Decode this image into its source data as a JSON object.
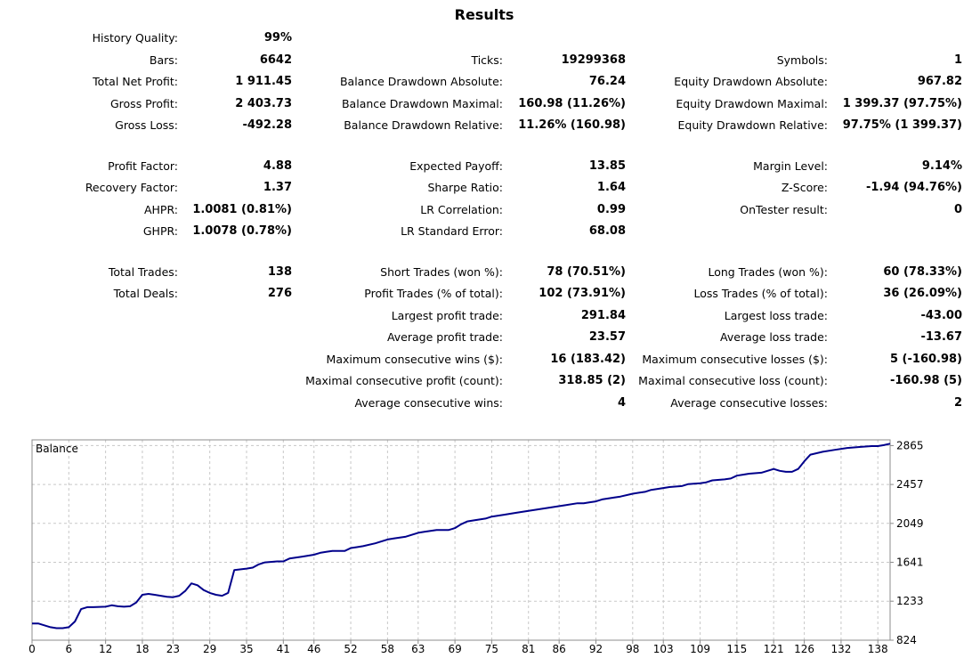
{
  "report": {
    "title": "Results",
    "columns": [
      [
        {
          "key": "history-quality",
          "label": "History Quality:",
          "value": "99%",
          "row": 0
        },
        {
          "key": "bars",
          "label": "Bars:",
          "value": "6642",
          "row": 1
        },
        {
          "key": "total-net-profit",
          "label": "Total Net Profit:",
          "value": "1 911.45",
          "row": 2
        },
        {
          "key": "gross-profit",
          "label": "Gross Profit:",
          "value": "2 403.73",
          "row": 3
        },
        {
          "key": "gross-loss",
          "label": "Gross Loss:",
          "value": "-492.28",
          "row": 4
        },
        {
          "key": "profit-factor",
          "label": "Profit Factor:",
          "value": "4.88",
          "row": 6
        },
        {
          "key": "recovery-factor",
          "label": "Recovery Factor:",
          "value": "1.37",
          "row": 7
        },
        {
          "key": "ahpr",
          "label": "AHPR:",
          "value": "1.0081 (0.81%)",
          "row": 8
        },
        {
          "key": "ghpr",
          "label": "GHPR:",
          "value": "1.0078 (0.78%)",
          "row": 9
        },
        {
          "key": "total-trades",
          "label": "Total Trades:",
          "value": "138",
          "row": 11
        },
        {
          "key": "total-deals",
          "label": "Total Deals:",
          "value": "276",
          "row": 12
        }
      ],
      [
        {
          "key": "ticks",
          "label": "Ticks:",
          "value": "19299368",
          "row": 1
        },
        {
          "key": "balance-drawdown-absolute",
          "label": "Balance Drawdown Absolute:",
          "value": "76.24",
          "row": 2
        },
        {
          "key": "balance-drawdown-maximal",
          "label": "Balance Drawdown Maximal:",
          "value": "160.98 (11.26%)",
          "row": 3
        },
        {
          "key": "balance-drawdown-relative",
          "label": "Balance Drawdown Relative:",
          "value": "11.26% (160.98)",
          "row": 4
        },
        {
          "key": "expected-payoff",
          "label": "Expected Payoff:",
          "value": "13.85",
          "row": 6
        },
        {
          "key": "sharpe-ratio",
          "label": "Sharpe Ratio:",
          "value": "1.64",
          "row": 7
        },
        {
          "key": "lr-correlation",
          "label": "LR Correlation:",
          "value": "0.99",
          "row": 8
        },
        {
          "key": "lr-standard-error",
          "label": "LR Standard Error:",
          "value": "68.08",
          "row": 9
        },
        {
          "key": "short-trades",
          "label": "Short Trades (won %):",
          "value": "78 (70.51%)",
          "row": 11
        },
        {
          "key": "profit-trades",
          "label": "Profit Trades (% of total):",
          "value": "102 (73.91%)",
          "row": 12
        },
        {
          "key": "largest-profit-trade",
          "label": "Largest profit trade:",
          "value": "291.84",
          "row": 13
        },
        {
          "key": "average-profit-trade",
          "label": "Average profit trade:",
          "value": "23.57",
          "row": 14
        },
        {
          "key": "max-consecutive-wins",
          "label": "Maximum consecutive wins ($):",
          "value": "16 (183.42)",
          "row": 15
        },
        {
          "key": "maximal-consecutive-profit",
          "label": "Maximal consecutive profit (count):",
          "value": "318.85 (2)",
          "row": 16
        },
        {
          "key": "average-consecutive-wins",
          "label": "Average consecutive wins:",
          "value": "4",
          "row": 17
        }
      ],
      [
        {
          "key": "symbols",
          "label": "Symbols:",
          "value": "1",
          "row": 1
        },
        {
          "key": "equity-drawdown-absolute",
          "label": "Equity Drawdown Absolute:",
          "value": "967.82",
          "row": 2
        },
        {
          "key": "equity-drawdown-maximal",
          "label": "Equity Drawdown Maximal:",
          "value": "1 399.37 (97.75%)",
          "row": 3
        },
        {
          "key": "equity-drawdown-relative",
          "label": "Equity Drawdown Relative:",
          "value": "97.75% (1 399.37)",
          "row": 4
        },
        {
          "key": "margin-level",
          "label": "Margin Level:",
          "value": "9.14%",
          "row": 6
        },
        {
          "key": "z-score",
          "label": "Z-Score:",
          "value": "-1.94 (94.76%)",
          "row": 7
        },
        {
          "key": "ontester-result",
          "label": "OnTester result:",
          "value": "0",
          "row": 8
        },
        {
          "key": "long-trades",
          "label": "Long Trades (won %):",
          "value": "60 (78.33%)",
          "row": 11
        },
        {
          "key": "loss-trades",
          "label": "Loss Trades (% of total):",
          "value": "36 (26.09%)",
          "row": 12
        },
        {
          "key": "largest-loss-trade",
          "label": "Largest loss trade:",
          "value": "-43.00",
          "row": 13
        },
        {
          "key": "average-loss-trade",
          "label": "Average loss trade:",
          "value": "-13.67",
          "row": 14
        },
        {
          "key": "max-consecutive-losses",
          "label": "Maximum consecutive losses ($):",
          "value": "5 (-160.98)",
          "row": 15
        },
        {
          "key": "maximal-consecutive-loss",
          "label": "Maximal consecutive loss (count):",
          "value": "-160.98 (5)",
          "row": 16
        },
        {
          "key": "average-consecutive-losses",
          "label": "Average consecutive losses:",
          "value": "2",
          "row": 17
        }
      ]
    ]
  },
  "chart_data": {
    "type": "line",
    "title": "Balance",
    "xlabel": "",
    "ylabel": "",
    "xlim": [
      0,
      140
    ],
    "ylim": [
      824,
      2925
    ],
    "grid": true,
    "line_color": "#00008b",
    "x_ticks": [
      0,
      6,
      12,
      18,
      23,
      29,
      35,
      41,
      46,
      52,
      58,
      63,
      69,
      75,
      81,
      86,
      92,
      98,
      103,
      109,
      115,
      121,
      126,
      132,
      138
    ],
    "y_ticks": [
      824,
      1233,
      1641,
      2049,
      2457,
      2865
    ],
    "series": [
      {
        "x": [
          0,
          1,
          3,
          4,
          5,
          6,
          7,
          8,
          9,
          10,
          12,
          13,
          14,
          15,
          16,
          17,
          18,
          19,
          20,
          21,
          22,
          23,
          24,
          25,
          26,
          27,
          28,
          29,
          30,
          31,
          32,
          33,
          35,
          36,
          37,
          38,
          40,
          41,
          42,
          44,
          45,
          46,
          47,
          48,
          49,
          51,
          52,
          53,
          54,
          56,
          57,
          58,
          59,
          61,
          62,
          63,
          64,
          66,
          67,
          68,
          69,
          70,
          71,
          72,
          74,
          75,
          77,
          79,
          81,
          83,
          85,
          87,
          89,
          90,
          91,
          92,
          93,
          95,
          96,
          98,
          99,
          100,
          101,
          103,
          104,
          106,
          107,
          109,
          110,
          111,
          113,
          114,
          115,
          116,
          117,
          119,
          120,
          121,
          122,
          123,
          124,
          125,
          126,
          127,
          129,
          131,
          133,
          135,
          137,
          138,
          139,
          140
        ],
        "values": [
          1000,
          1000,
          960,
          950,
          950,
          960,
          1020,
          1150,
          1170,
          1170,
          1175,
          1190,
          1180,
          1175,
          1180,
          1220,
          1300,
          1310,
          1300,
          1290,
          1280,
          1275,
          1290,
          1340,
          1420,
          1400,
          1350,
          1320,
          1300,
          1290,
          1320,
          1560,
          1575,
          1585,
          1620,
          1640,
          1650,
          1650,
          1680,
          1700,
          1710,
          1720,
          1740,
          1750,
          1760,
          1760,
          1790,
          1800,
          1810,
          1840,
          1860,
          1880,
          1890,
          1910,
          1930,
          1950,
          1960,
          1980,
          1980,
          1980,
          2000,
          2040,
          2070,
          2080,
          2100,
          2120,
          2140,
          2160,
          2180,
          2200,
          2220,
          2240,
          2260,
          2260,
          2270,
          2280,
          2300,
          2320,
          2330,
          2360,
          2370,
          2380,
          2400,
          2420,
          2430,
          2440,
          2460,
          2470,
          2480,
          2500,
          2510,
          2520,
          2550,
          2560,
          2570,
          2580,
          2600,
          2620,
          2600,
          2590,
          2590,
          2620,
          2700,
          2770,
          2800,
          2820,
          2840,
          2850,
          2860,
          2860,
          2870,
          2885
        ]
      }
    ]
  }
}
